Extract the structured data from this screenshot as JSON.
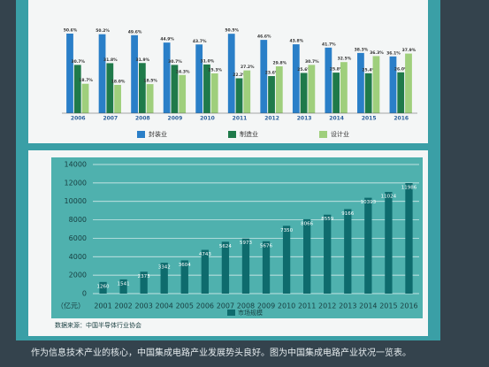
{
  "chart_data": [
    {
      "type": "grouped_bar",
      "categories": [
        "2006",
        "2007",
        "2008",
        "2009",
        "2010",
        "2011",
        "2012",
        "2013",
        "2014",
        "2015",
        "2016"
      ],
      "series": [
        {
          "name": "封装业",
          "color": "#2a7fc8",
          "values": [
            50.6,
            50.2,
            49.6,
            44.9,
            43.7,
            50.5,
            46.6,
            43.8,
            41.7,
            38.3,
            36.1
          ],
          "value_labels": [
            "50.6%",
            "50.2%",
            "49.6%",
            "44.9%",
            "43.7%",
            "50.5%",
            "46.6%",
            "43.8%",
            "41.7%",
            "38.3%",
            "36.1%"
          ]
        },
        {
          "name": "制造业",
          "color": "#1f7a4a",
          "values": [
            30.7,
            31.8,
            31.9,
            30.7,
            31.0,
            22.2,
            23.6,
            25.6,
            25.8,
            25.4,
            26.0
          ],
          "value_labels": [
            "30.7%",
            "31.8%",
            "31.9%",
            "30.7%",
            "31.0%",
            "22.2%",
            "23.6%",
            "25.6%",
            "25.8%",
            "25.4%",
            "26.0%"
          ]
        },
        {
          "name": "设计业",
          "color": "#9fcf7c",
          "values": [
            18.7,
            18.0,
            18.5,
            24.3,
            25.3,
            27.2,
            29.8,
            30.7,
            32.5,
            36.3,
            37.9
          ],
          "value_labels": [
            "18.7%",
            "18.0%",
            "18.5%",
            "24.3%",
            "25.3%",
            "27.2%",
            "29.8%",
            "30.7%",
            "32.5%",
            "36.3%",
            "37.9%"
          ]
        }
      ]
    },
    {
      "type": "bar",
      "y_label": "（亿元）",
      "source": "数据来源：中国半导体行业协会",
      "categories": [
        "2001",
        "2002",
        "2003",
        "2004",
        "2005",
        "2006",
        "2007",
        "2008",
        "2009",
        "2010",
        "2011",
        "2012",
        "2013",
        "2014",
        "2015",
        "2016"
      ],
      "series": [
        {
          "name": "市场规模",
          "color": "#0e6b6d",
          "values": [
            1260,
            1541,
            2373,
            3342,
            3604,
            4743,
            5624,
            5973,
            5676,
            7350,
            8066,
            8559,
            9166,
            10393,
            11024,
            11986
          ]
        }
      ],
      "ylim": [
        0,
        14000
      ],
      "yticks": [
        0,
        2000,
        4000,
        6000,
        8000,
        10000,
        12000,
        14000
      ],
      "grid": true
    }
  ],
  "caption": "作为信息技术产业的核心，中国集成电路产业发展势头良好。图为中国集成电路产业状况一览表。"
}
